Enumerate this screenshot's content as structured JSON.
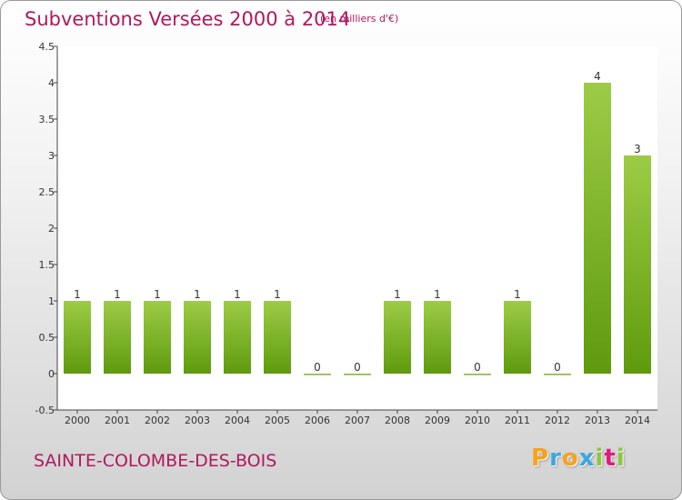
{
  "chart_data": {
    "type": "bar",
    "title": "Subventions Versées 2000 à 2014",
    "subtitle": "(en milliers d'€)",
    "categories": [
      "2000",
      "2001",
      "2002",
      "2003",
      "2004",
      "2005",
      "2006",
      "2007",
      "2008",
      "2009",
      "2010",
      "2011",
      "2012",
      "2013",
      "2014"
    ],
    "values": [
      1,
      1,
      1,
      1,
      1,
      1,
      0,
      0,
      1,
      1,
      0,
      1,
      0,
      4,
      3
    ],
    "data_labels": [
      "1",
      "1",
      "1",
      "1",
      "1",
      "1",
      "0",
      "0",
      "1",
      "1",
      "0",
      "1",
      "0",
      "4",
      "3"
    ],
    "y_ticks": [
      "-0.5",
      "0",
      "0.5",
      "1",
      "1.5",
      "2",
      "2.5",
      "3",
      "3.5",
      "4",
      "4.5"
    ],
    "ylim": [
      -0.5,
      4.5
    ],
    "grid": false,
    "bar_color_top": "#9ccc45",
    "bar_color_bottom": "#5f9a0e"
  },
  "footer": {
    "commune": "SAINTE-COLOMBE-DES-BOIS",
    "logo_letters": [
      "P",
      "r",
      "o",
      "x",
      "i",
      "t",
      "i"
    ],
    "logo_colors": [
      "#f7a21b",
      "#3aa7e0",
      "#f7a21b",
      "#3aa7e0",
      "#8dc63f",
      "#e2197d",
      "#8dc63f"
    ]
  }
}
